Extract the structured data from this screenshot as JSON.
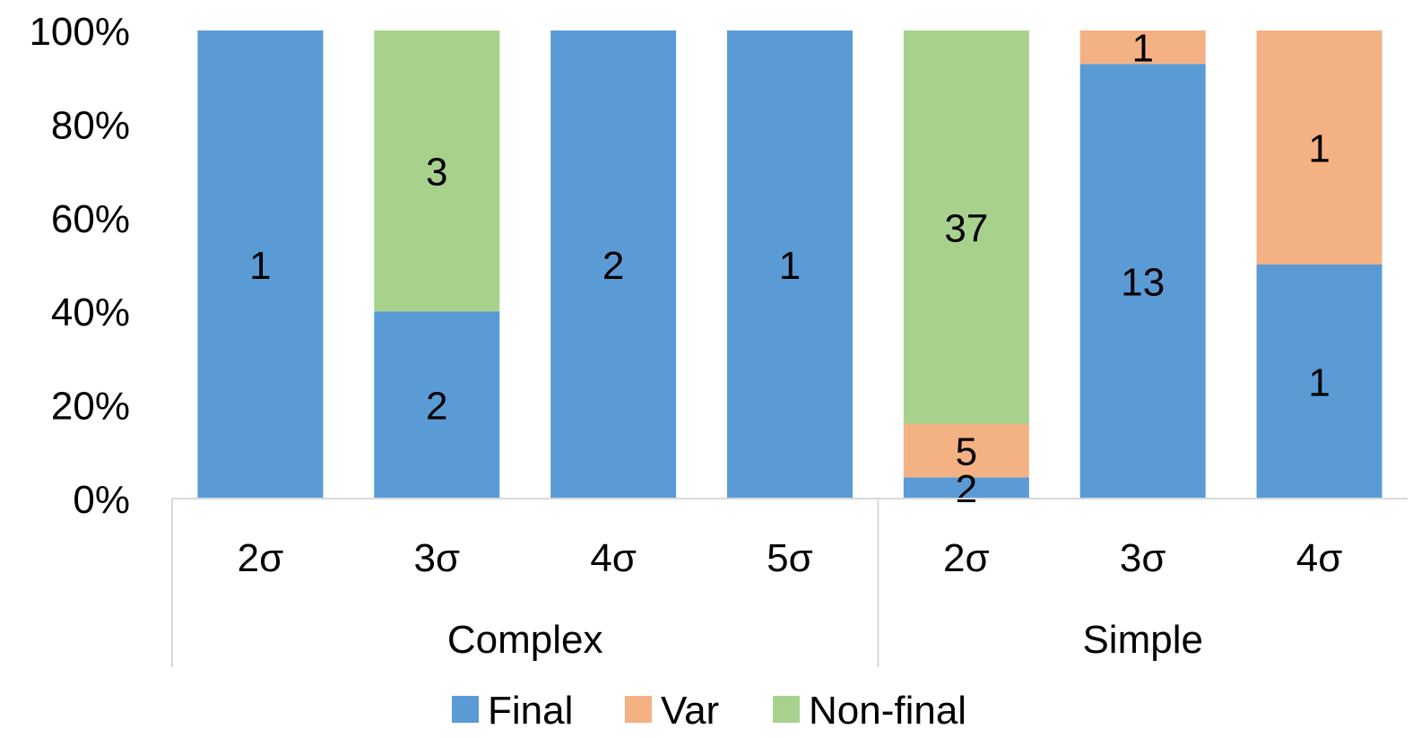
{
  "chart_data": {
    "type": "bar",
    "stacked": true,
    "normalized": true,
    "groups": [
      {
        "name": "Complex",
        "categories": [
          "2σ",
          "3σ",
          "4σ",
          "5σ"
        ]
      },
      {
        "name": "Simple",
        "categories": [
          "2σ",
          "3σ",
          "4σ"
        ]
      }
    ],
    "categories": [
      "2σ",
      "3σ",
      "4σ",
      "5σ",
      "2σ",
      "3σ",
      "4σ"
    ],
    "series": [
      {
        "name": "Final",
        "color": "#5b9bd5",
        "values": [
          1,
          2,
          2,
          1,
          2,
          13,
          1
        ]
      },
      {
        "name": "Var",
        "color": "#f4b183",
        "values": [
          0,
          0,
          0,
          0,
          5,
          1,
          1
        ]
      },
      {
        "name": "Non-final",
        "color": "#a9d18e",
        "values": [
          0,
          3,
          0,
          0,
          37,
          0,
          0
        ]
      }
    ],
    "yticks": [
      "0%",
      "20%",
      "40%",
      "60%",
      "80%",
      "100%"
    ],
    "ylim": [
      0,
      100
    ],
    "title": "",
    "xlabel": "",
    "ylabel": "",
    "grid": false,
    "legend_position": "bottom"
  }
}
